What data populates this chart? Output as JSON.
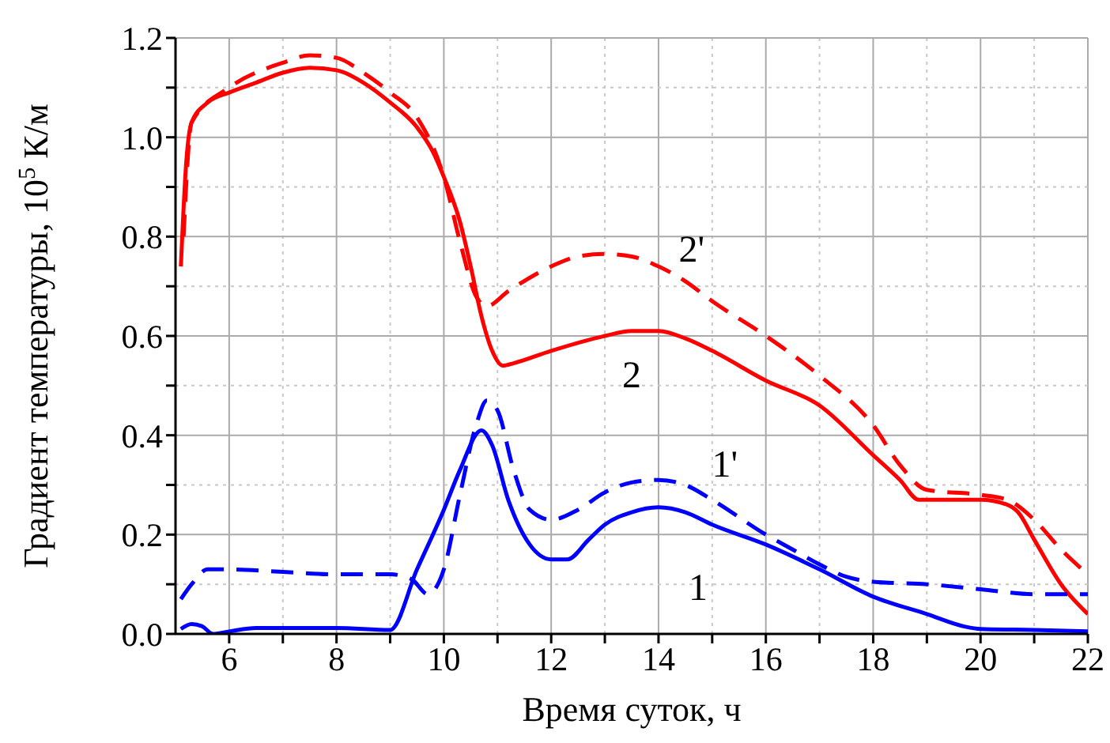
{
  "chart_data": {
    "type": "line",
    "xlabel": "Время суток, ч",
    "ylabel": "Градиент температуры, 10$^{5}$ К/м",
    "xlim": [
      5,
      22
    ],
    "ylim": [
      0,
      1.2
    ],
    "xticks": [
      6,
      {
        "value": 7,
        "label": null
      },
      8,
      {
        "value": 9,
        "label": null
      },
      10,
      {
        "value": 11,
        "label": null
      },
      12,
      {
        "value": 13,
        "label": null
      },
      14,
      {
        "value": 15,
        "label": null
      },
      16,
      {
        "value": 17,
        "label": null
      },
      18,
      {
        "value": 19,
        "label": null
      },
      20,
      {
        "value": 21,
        "label": null
      },
      22
    ],
    "yticks": [
      {
        "value": 0,
        "label": "0.0"
      },
      {
        "value": 0.1,
        "label": null
      },
      {
        "value": 0.2,
        "label": "0.2"
      },
      {
        "value": 0.3,
        "label": null
      },
      {
        "value": 0.4,
        "label": "0.4"
      },
      {
        "value": 0.5,
        "label": null
      },
      {
        "value": 0.6,
        "label": "0.6"
      },
      {
        "value": 0.7,
        "label": null
      },
      {
        "value": 0.8,
        "label": "0.8"
      },
      {
        "value": 0.9,
        "label": null
      },
      {
        "value": 1.0,
        "label": "1.0"
      },
      {
        "value": 1.1,
        "label": null
      },
      {
        "value": 1.2,
        "label": "1.2"
      }
    ],
    "grid": true,
    "marker": "none",
    "series": [
      {
        "name": "2",
        "color": "#ff0000",
        "line_style": "solid",
        "x": [
          5.1,
          5.2,
          5.3,
          5.6,
          6,
          6.5,
          7,
          7.5,
          8,
          8.5,
          9,
          9.5,
          9.8,
          10,
          10.3,
          10.5,
          10.7,
          10.9,
          11.1,
          11.3,
          12,
          13,
          13.5,
          14,
          14.5,
          15,
          16,
          17,
          18,
          18.5,
          18.85,
          20,
          20.5,
          20.7,
          21,
          21.5,
          22
        ],
        "values": [
          0.74,
          0.95,
          1.03,
          1.07,
          1.09,
          1.11,
          1.13,
          1.14,
          1.135,
          1.11,
          1.07,
          1.02,
          0.97,
          0.92,
          0.83,
          0.74,
          0.64,
          0.57,
          0.54,
          0.545,
          0.57,
          0.6,
          0.61,
          0.61,
          0.595,
          0.57,
          0.51,
          0.46,
          0.36,
          0.31,
          0.27,
          0.27,
          0.26,
          0.245,
          0.19,
          0.1,
          0.04
        ]
      },
      {
        "name": "2'",
        "color": "#ff0000",
        "line_style": "dashed",
        "x": [
          5.15,
          5.3,
          6,
          7,
          7.5,
          8,
          8.5,
          9,
          9.5,
          10,
          10.3,
          10.6,
          10.8,
          11.2,
          12,
          12.5,
          13,
          13.5,
          14,
          14.5,
          15,
          16,
          17,
          18,
          18.5,
          19,
          20,
          20.5,
          21,
          21.5,
          22
        ],
        "values": [
          0.8,
          1.03,
          1.1,
          1.15,
          1.165,
          1.16,
          1.13,
          1.09,
          1.04,
          0.92,
          0.79,
          0.68,
          0.66,
          0.69,
          0.74,
          0.76,
          0.765,
          0.76,
          0.74,
          0.71,
          0.67,
          0.6,
          0.52,
          0.42,
          0.34,
          0.29,
          0.28,
          0.27,
          0.23,
          0.17,
          0.12
        ]
      },
      {
        "name": "1",
        "color": "#0000ff",
        "line_style": "solid",
        "x": [
          5.1,
          5.3,
          5.5,
          5.7,
          6,
          6.5,
          8,
          9,
          9.5,
          10,
          10.3,
          10.7,
          10.9,
          11.2,
          11.6,
          12,
          12.3,
          12.7,
          13,
          13.5,
          14,
          14.5,
          15,
          16,
          17,
          18,
          19,
          19.7,
          20,
          21,
          22
        ],
        "values": [
          0.01,
          0.02,
          0.015,
          0.0,
          0.005,
          0.012,
          0.012,
          0.008,
          0.13,
          0.25,
          0.33,
          0.41,
          0.38,
          0.27,
          0.18,
          0.15,
          0.15,
          0.19,
          0.22,
          0.245,
          0.255,
          0.245,
          0.22,
          0.18,
          0.13,
          0.075,
          0.04,
          0.015,
          0.01,
          0.008,
          0.005
        ]
      },
      {
        "name": "1'",
        "color": "#0000ff",
        "line_style": "dashed",
        "x": [
          5.1,
          5.3,
          5.6,
          6,
          7,
          8,
          9,
          9.4,
          9.7,
          10,
          10.3,
          10.6,
          10.8,
          11,
          11.3,
          11.6,
          12,
          12.5,
          13,
          13.5,
          14,
          14.5,
          15,
          16,
          16.5,
          17,
          17.5,
          18,
          19,
          20,
          21,
          22
        ],
        "values": [
          0.07,
          0.1,
          0.13,
          0.13,
          0.125,
          0.12,
          0.12,
          0.11,
          0.08,
          0.13,
          0.28,
          0.42,
          0.47,
          0.45,
          0.33,
          0.25,
          0.23,
          0.25,
          0.285,
          0.305,
          0.31,
          0.3,
          0.27,
          0.2,
          0.17,
          0.14,
          0.115,
          0.105,
          0.1,
          0.09,
          0.08,
          0.08
        ]
      }
    ]
  }
}
